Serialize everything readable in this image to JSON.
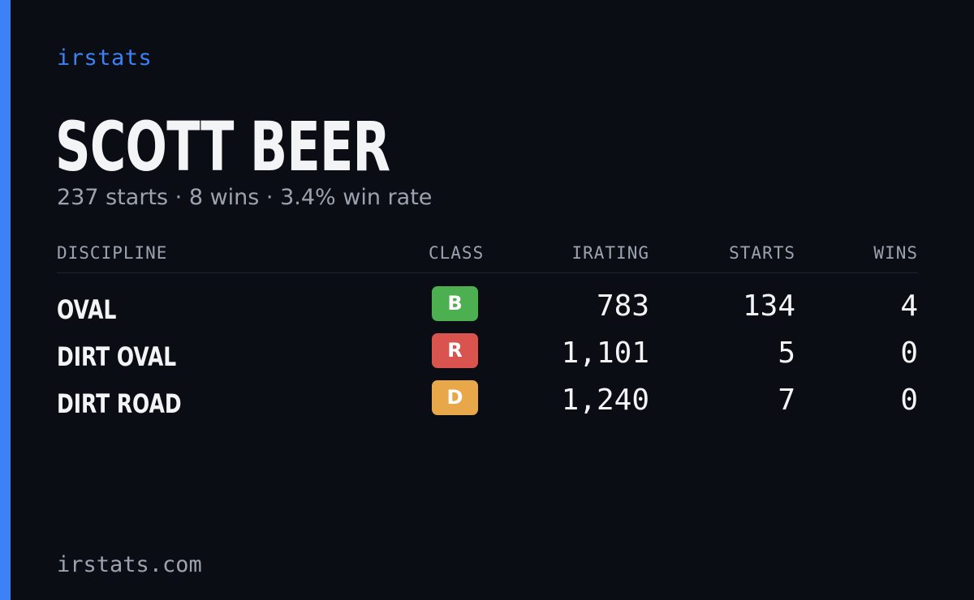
{
  "brand": "irstats",
  "driver": {
    "name": "SCOTT BEER",
    "summary": "237 starts · 8 wins · 3.4% win rate"
  },
  "table": {
    "headers": {
      "discipline": "DISCIPLINE",
      "class": "CLASS",
      "irating": "IRATING",
      "starts": "STARTS",
      "wins": "WINS"
    },
    "rows": [
      {
        "discipline": "OVAL",
        "class": "B",
        "class_color": "#4caf50",
        "irating": "783",
        "starts": "134",
        "wins": "4"
      },
      {
        "discipline": "DIRT OVAL",
        "class": "R",
        "class_color": "#d9534f",
        "irating": "1,101",
        "starts": "5",
        "wins": "0"
      },
      {
        "discipline": "DIRT ROAD",
        "class": "D",
        "class_color": "#e8a84a",
        "irating": "1,240",
        "starts": "7",
        "wins": "0"
      }
    ]
  },
  "footer": "irstats.com",
  "colors": {
    "accent": "#3b82f6",
    "background": "#0a0d14"
  }
}
